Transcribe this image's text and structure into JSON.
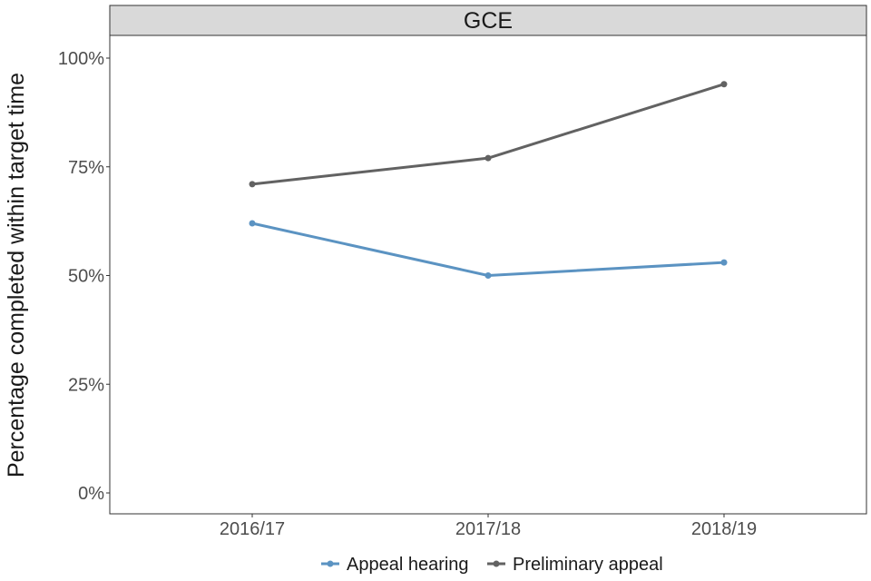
{
  "chart_data": {
    "type": "line",
    "title": "",
    "facet_label": "GCE",
    "xlabel": "",
    "ylabel": "Percentage completed within target time",
    "categories": [
      "2016/17",
      "2017/18",
      "2018/19"
    ],
    "ylim": [
      0,
      1
    ],
    "yticks": [
      0,
      0.25,
      0.5,
      0.75,
      1
    ],
    "ytick_labels": [
      "0%",
      "25%",
      "50%",
      "75%",
      "100%"
    ],
    "grid": false,
    "legend_position": "bottom",
    "series": [
      {
        "name": "Appeal hearing",
        "color": "#5b93c2",
        "values": [
          0.62,
          0.5,
          0.53
        ]
      },
      {
        "name": "Preliminary appeal",
        "color": "#626262",
        "values": [
          0.71,
          0.77,
          0.94
        ]
      }
    ]
  }
}
